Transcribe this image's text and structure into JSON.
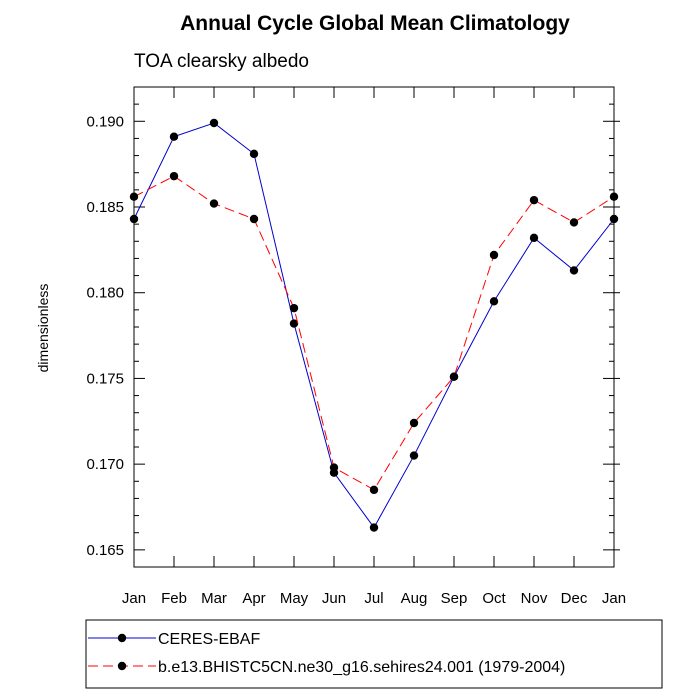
{
  "chart_data": {
    "type": "line",
    "title": "Annual Cycle Global Mean Climatology",
    "subtitle": "TOA clearsky albedo",
    "xlabel": "",
    "ylabel": "dimensionless",
    "categories": [
      "Jan",
      "Feb",
      "Mar",
      "Apr",
      "May",
      "Jun",
      "Jul",
      "Aug",
      "Sep",
      "Oct",
      "Nov",
      "Dec",
      "Jan"
    ],
    "ylim": [
      0.164,
      0.192
    ],
    "yticks": [
      0.165,
      0.17,
      0.175,
      0.18,
      0.185,
      0.19
    ],
    "ytick_labels": [
      "0.165",
      "0.170",
      "0.175",
      "0.180",
      "0.185",
      "0.190"
    ],
    "legend_position": "bottom",
    "grid": false,
    "series": [
      {
        "name": "CERES-EBAF",
        "color": "#0000cc",
        "dash": "solid",
        "values": [
          0.1843,
          0.1891,
          0.1899,
          0.1881,
          0.1782,
          0.1695,
          0.1663,
          0.1705,
          0.1751,
          0.1795,
          0.1832,
          0.1813,
          0.1843
        ]
      },
      {
        "name": "b.e13.BHISTC5CN.ne30_g16.sehires24.001 (1979-2004)",
        "color": "#ff0000",
        "dash": "dashed",
        "values": [
          0.1856,
          0.1868,
          0.1852,
          0.1843,
          0.1791,
          0.1698,
          0.1685,
          0.1724,
          0.1751,
          0.1822,
          0.1854,
          0.1841,
          0.1856
        ]
      }
    ]
  }
}
